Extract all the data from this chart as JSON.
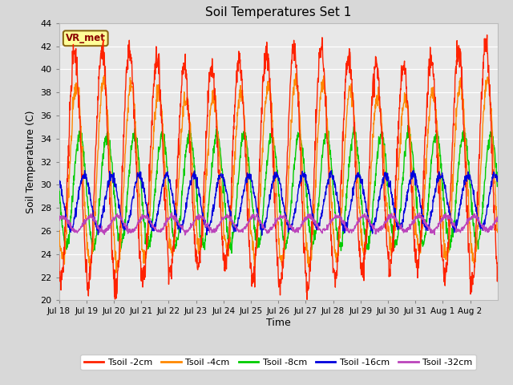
{
  "title": "Soil Temperatures Set 1",
  "xlabel": "Time",
  "ylabel": "Soil Temperature (C)",
  "ylim": [
    20,
    44
  ],
  "fig_bg_color": "#d8d8d8",
  "plot_bg_color": "#e8e8e8",
  "annotation": "VR_met",
  "colors": {
    "Tsoil -2cm": "#ff2200",
    "Tsoil -4cm": "#ff8800",
    "Tsoil -8cm": "#00cc00",
    "Tsoil -16cm": "#0000dd",
    "Tsoil -32cm": "#bb44bb"
  },
  "legend_labels": [
    "Tsoil -2cm",
    "Tsoil -4cm",
    "Tsoil -8cm",
    "Tsoil -16cm",
    "Tsoil -32cm"
  ],
  "x_tick_labels": [
    "Jul 18",
    "Jul 19",
    "Jul 20",
    "Jul 21",
    "Jul 22",
    "Jul 23",
    "Jul 24",
    "Jul 25",
    "Jul 26",
    "Jul 27",
    "Jul 28",
    "Jul 29",
    "Jul 30",
    "Jul 31",
    "Aug 1",
    "Aug 2"
  ],
  "n_days": 16,
  "pts_per_day": 96
}
